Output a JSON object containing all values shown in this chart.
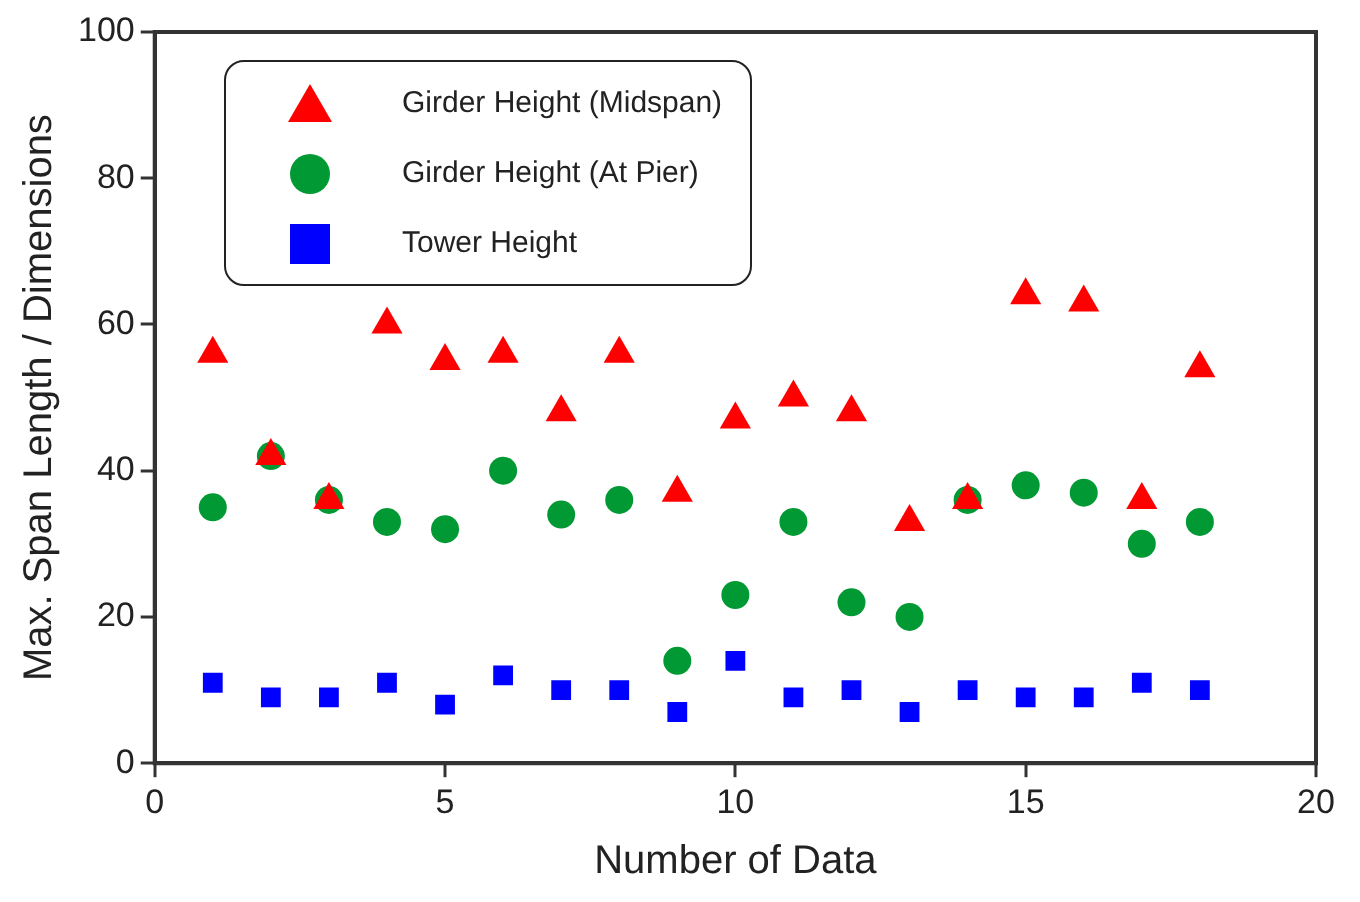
{
  "chart_data": {
    "type": "scatter",
    "xlabel": "Number of Data",
    "ylabel": "Max. Span Length / Dimensions",
    "x": [
      1,
      2,
      3,
      4,
      5,
      6,
      7,
      8,
      9,
      10,
      11,
      12,
      13,
      14,
      15,
      16,
      17,
      18
    ],
    "xlim": [
      0,
      20
    ],
    "xticks": [
      0,
      5,
      10,
      15,
      20
    ],
    "ylim": [
      0,
      100
    ],
    "yticks": [
      0,
      20,
      40,
      60,
      80,
      100
    ],
    "grid": false,
    "legend": "top left",
    "series": [
      {
        "name": "Girder Height (Midspan)",
        "color": "#ff0000",
        "marker": "triangle",
        "values": [
          56,
          42,
          36,
          60,
          55,
          56,
          48,
          56,
          37,
          47,
          50,
          48,
          33,
          36,
          64,
          63,
          36,
          54
        ]
      },
      {
        "name": "Girder Height (At Pier)",
        "color": "#009933",
        "marker": "circle",
        "values": [
          35,
          42,
          36,
          33,
          32,
          40,
          34,
          36,
          14,
          23,
          33,
          22,
          20,
          36,
          38,
          37,
          30,
          33
        ]
      },
      {
        "name": "Tower Height",
        "color": "#0000ff",
        "marker": "square",
        "values": [
          11,
          9,
          9,
          11,
          8,
          12,
          10,
          10,
          7,
          14,
          9,
          10,
          7,
          10,
          9,
          9,
          11,
          10
        ]
      }
    ]
  }
}
